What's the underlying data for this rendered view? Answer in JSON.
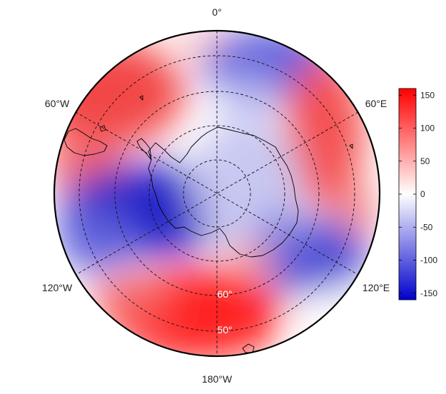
{
  "map": {
    "projection": "south-polar-stereographic",
    "longitude_labels": {
      "top": "0°",
      "upper_right": "60°E",
      "lower_right": "120°E",
      "bottom": "180°W",
      "lower_left": "120°W",
      "upper_left": "60°W"
    },
    "latitude_labels": [
      "60°",
      "50°"
    ],
    "gridlines": "dashed",
    "colormap": {
      "low": "#0000cc",
      "mid": "#ffffff",
      "high": "#ff0000"
    }
  },
  "colorbar": {
    "min": -160,
    "max": 160,
    "ticks": [
      "150",
      "100",
      "50",
      "0",
      "-50",
      "-100",
      "-150"
    ]
  }
}
